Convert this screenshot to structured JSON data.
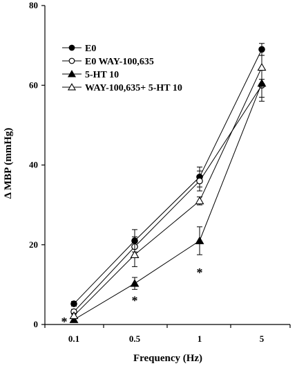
{
  "chart_data": {
    "type": "line",
    "xlabel": "Frequency (Hz)",
    "ylabel": "Δ MBP (mmHg)",
    "categories": [
      "0.1",
      "0.5",
      "1",
      "5"
    ],
    "ylim": [
      0,
      80
    ],
    "yticks": [
      0,
      20,
      40,
      60,
      80
    ],
    "grid": false,
    "legend_position": "top-left",
    "series": [
      {
        "name": "E0",
        "marker": "filled-circle",
        "values": [
          5.2,
          21.0,
          37.0,
          69.0
        ],
        "errors": [
          0.6,
          2.8,
          2.5,
          1.5
        ]
      },
      {
        "name": "E0 WAY-100,635",
        "marker": "open-circle",
        "values": [
          3.2,
          19.5,
          36.0,
          60.0
        ],
        "errors": [
          0.6,
          2.5,
          2.5,
          4.0
        ]
      },
      {
        "name": "5-HT 10",
        "marker": "filled-triangle",
        "values": [
          1.2,
          10.3,
          21.0,
          60.5
        ],
        "errors": [
          0.5,
          1.5,
          3.5,
          3.5
        ]
      },
      {
        "name": "WAY-100,635+ 5-HT 10",
        "marker": "open-triangle",
        "values": [
          2.2,
          17.5,
          31.0,
          64.5
        ],
        "errors": [
          0.6,
          3.0,
          1.0,
          3.0
        ]
      }
    ],
    "annotations": [
      {
        "text": "*",
        "x": "0.1",
        "y": 1.2
      },
      {
        "text": "*",
        "x": "0.5",
        "y": 6.5
      },
      {
        "text": "*",
        "x": "1",
        "y": 13.5
      }
    ]
  }
}
